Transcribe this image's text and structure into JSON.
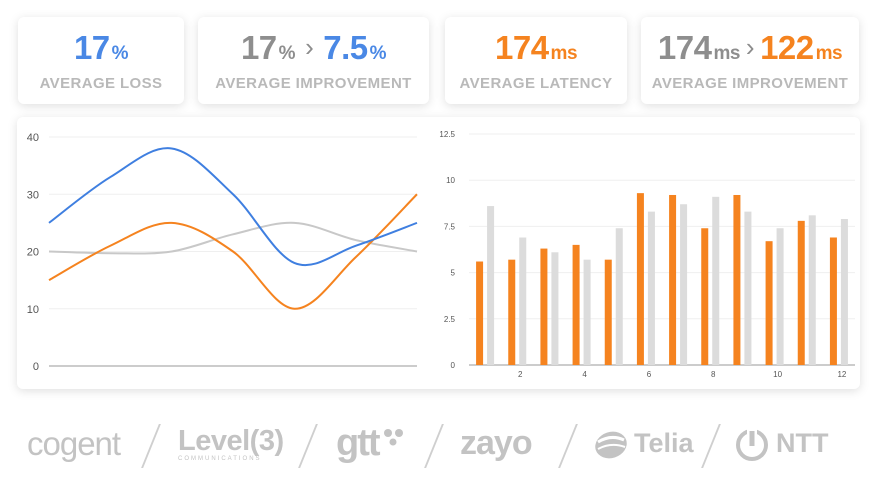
{
  "stats": [
    {
      "value": "17",
      "unit": "%",
      "label": "AVERAGE LOSS",
      "color": "#4a88e5"
    },
    {
      "from_value": "17",
      "from_unit": "%",
      "to_value": "7.5",
      "to_unit": "%",
      "label": "AVERAGE IMPROVEMENT",
      "from_color": "#8e8e8e",
      "to_color": "#4a88e5"
    },
    {
      "value": "174",
      "unit": "ms",
      "label": "AVERAGE LATENCY",
      "color": "#f5831f"
    },
    {
      "from_value": "174",
      "from_unit": "ms",
      "to_value": "122",
      "to_unit": "ms",
      "label": "AVERAGE IMPROVEMENT",
      "from_color": "#8e8e8e",
      "to_color": "#f5831f"
    }
  ],
  "chart_data": [
    {
      "type": "line",
      "x": [
        0,
        1,
        2,
        3,
        4,
        5,
        6
      ],
      "ylim": [
        0,
        40
      ],
      "yticks": [
        "0",
        "10",
        "20",
        "30",
        "40"
      ],
      "grid": true,
      "series": [
        {
          "color": "#3f7fe0",
          "values": [
            25,
            33,
            38,
            30,
            18,
            21,
            25
          ]
        },
        {
          "color": "#f5831f",
          "values": [
            15,
            21,
            25,
            20,
            10,
            19,
            30
          ]
        },
        {
          "color": "#c8c8c8",
          "values": [
            20,
            19.7,
            20,
            23,
            25,
            22,
            20
          ]
        }
      ]
    },
    {
      "type": "bar",
      "x": [
        1,
        2,
        3,
        4,
        5,
        6,
        7,
        8,
        9,
        10,
        11,
        12
      ],
      "xticks": [
        "2",
        "4",
        "6",
        "8",
        "10",
        "12"
      ],
      "ylim": [
        0,
        12.5
      ],
      "yticks": [
        "0",
        "2.5",
        "5",
        "7.5",
        "10",
        "12.5"
      ],
      "grid": true,
      "series": [
        {
          "color": "#f5831f",
          "values": [
            5.6,
            5.7,
            6.3,
            6.5,
            5.7,
            9.3,
            9.2,
            7.4,
            9.2,
            6.7,
            7.8,
            6.9
          ]
        },
        {
          "color": "#dcdcdc",
          "values": [
            8.6,
            6.9,
            6.1,
            5.7,
            7.4,
            8.3,
            8.7,
            9.1,
            8.3,
            7.4,
            8.1,
            7.9
          ]
        }
      ]
    }
  ],
  "logos": [
    {
      "name": "cogent",
      "text": "cogent"
    },
    {
      "name": "level3",
      "text": "Level(3)",
      "subtext": "COMMUNICATIONS"
    },
    {
      "name": "gtt",
      "text": "gtt"
    },
    {
      "name": "zayo",
      "text": "zayo"
    },
    {
      "name": "telia",
      "text": "Telia"
    },
    {
      "name": "ntt",
      "text": "NTT"
    }
  ],
  "colors": {
    "blue": "#4a88e5",
    "orange": "#f5831f",
    "gray": "#c8c8c8",
    "light_gray": "#dcdcdc"
  }
}
